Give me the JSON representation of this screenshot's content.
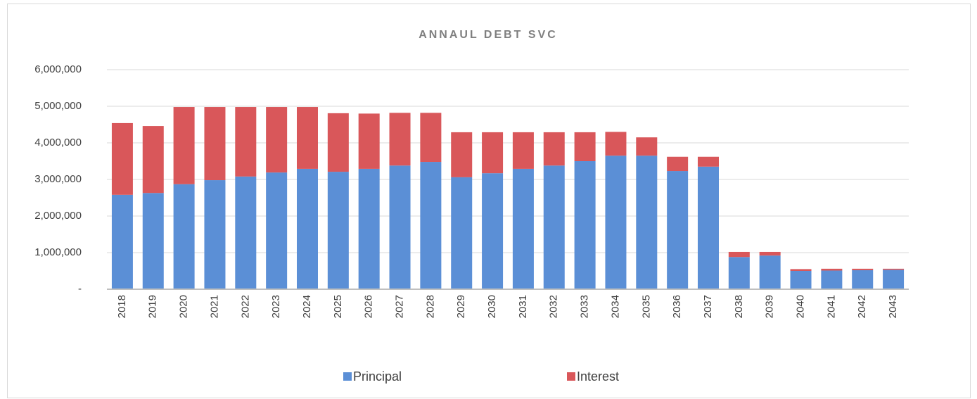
{
  "chart_data": {
    "type": "stacked_bar",
    "title": "ANNAUL DEBT SVC",
    "categories": [
      "2018",
      "2019",
      "2020",
      "2021",
      "2022",
      "2023",
      "2024",
      "2025",
      "2026",
      "2027",
      "2028",
      "2029",
      "2030",
      "2031",
      "2032",
      "2033",
      "2034",
      "2035",
      "2036",
      "2037",
      "2038",
      "2039",
      "2040",
      "2041",
      "2042",
      "2043"
    ],
    "series": [
      {
        "name": "Principal",
        "color": "#5b8fd6",
        "values": [
          2580000,
          2630000,
          2870000,
          2980000,
          3080000,
          3190000,
          3290000,
          3210000,
          3290000,
          3380000,
          3480000,
          3060000,
          3170000,
          3290000,
          3380000,
          3500000,
          3650000,
          3650000,
          3230000,
          3350000,
          880000,
          920000,
          500000,
          510000,
          520000,
          530000
        ]
      },
      {
        "name": "Interest",
        "color": "#d9575a",
        "values": [
          1960000,
          1830000,
          2110000,
          2000000,
          1900000,
          1790000,
          1690000,
          1600000,
          1510000,
          1440000,
          1340000,
          1230000,
          1120000,
          1000000,
          910000,
          790000,
          650000,
          500000,
          390000,
          270000,
          140000,
          100000,
          50000,
          50000,
          40000,
          30000
        ]
      }
    ],
    "ylim": [
      0,
      6000000
    ],
    "yticks": [
      {
        "value": 0,
        "label": "-"
      },
      {
        "value": 1000000,
        "label": "1,000,000"
      },
      {
        "value": 2000000,
        "label": "2,000,000"
      },
      {
        "value": 3000000,
        "label": "3,000,000"
      },
      {
        "value": 4000000,
        "label": "4,000,000"
      },
      {
        "value": 5000000,
        "label": "5,000,000"
      },
      {
        "value": 6000000,
        "label": "6,000,000"
      }
    ],
    "grid": true,
    "legend": "bottom"
  }
}
